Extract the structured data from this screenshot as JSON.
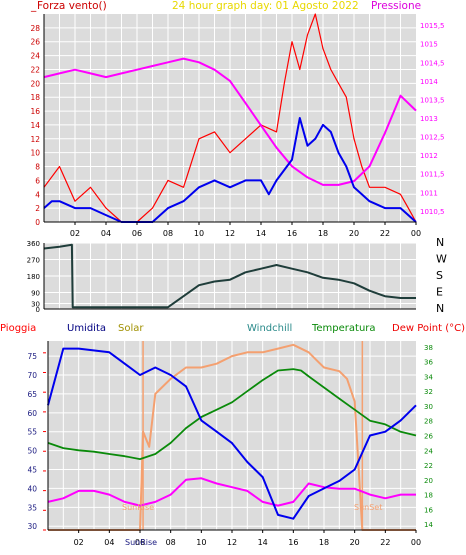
{
  "panel_wind": {
    "title": "24 hour graph day:  01 Agosto 2022",
    "left_label": "Forza vento()",
    "left_label_prefix": "_",
    "right_label": "Pressione"
  },
  "panel_direction": {
    "compass": [
      "N",
      "W",
      "S",
      "E",
      "N"
    ]
  },
  "panel_weather": {
    "legend": [
      "Pioggia",
      "Umidita",
      "Solar",
      "Windchill",
      "Temperatura",
      "Dew Point (°C)"
    ],
    "sunrise_label": "SunRise",
    "sunset_label": "SunSet"
  },
  "colors": {
    "frame": "#dcdcdc",
    "grid": "#ffffff",
    "wind_gust": "#ff0000",
    "wind_avg": "#0000ee",
    "pressure": "#ff00ff",
    "direction": "#1f3d3a",
    "humidity": "#0000ee",
    "solar": "#f4a070",
    "temperature": "#0a8a0a",
    "dewpoint": "#ff00ff",
    "rain": "#ff0000",
    "pressure_axis": "#ff00ff",
    "temp_axis": "#0a8a0a"
  },
  "chart_data": [
    {
      "type": "line",
      "title": "24 hour graph day:  01 Agosto 2022",
      "x_ticks": [
        "02",
        "04",
        "06",
        "08",
        "10",
        "12",
        "14",
        "16",
        "18",
        "20",
        "22",
        "00"
      ],
      "y_left": {
        "label": "Forza vento()",
        "ticks": [
          "0",
          "2",
          "4",
          "6",
          "8",
          "10",
          "12",
          "14",
          "16",
          "18",
          "20",
          "22",
          "24",
          "26",
          "28"
        ],
        "range": [
          0,
          30
        ]
      },
      "y_right": {
        "label": "Pressione",
        "ticks": [
          "1010,5",
          "1011",
          "1011,5",
          "1012",
          "1012,5",
          "1013",
          "1013,5",
          "1014",
          "1014,5",
          "1015",
          "1015,5"
        ],
        "range": [
          1010.2,
          1015.8
        ]
      },
      "series": [
        {
          "name": "gust",
          "x": [
            0.0,
            1.0,
            2.0,
            3.0,
            4.0,
            5.0,
            6.0,
            7.0,
            8.0,
            9.0,
            10.0,
            11.0,
            12.0,
            13.0,
            14.0,
            15.0,
            15.5,
            16.0,
            16.5,
            17.0,
            17.5,
            18.0,
            18.5,
            19.0,
            19.5,
            20.0,
            20.5,
            21.0,
            22.0,
            23.0,
            23.5,
            24.0
          ],
          "y": [
            5,
            8,
            3,
            5,
            2,
            0,
            0,
            2,
            6,
            5,
            12,
            13,
            10,
            12,
            14,
            13,
            20,
            26,
            22,
            27,
            30,
            25,
            22,
            20,
            18,
            12,
            8,
            5,
            5,
            4,
            2,
            0
          ]
        },
        {
          "name": "average",
          "x": [
            0.0,
            0.5,
            1.0,
            2.0,
            3.0,
            4.0,
            5.0,
            6.0,
            7.0,
            8.0,
            9.0,
            10.0,
            11.0,
            12.0,
            13.0,
            14.0,
            14.5,
            15.0,
            16.0,
            16.5,
            17.0,
            17.5,
            18.0,
            18.5,
            19.0,
            19.5,
            20.0,
            20.5,
            21.0,
            22.0,
            23.0,
            24.0
          ],
          "y": [
            2,
            3,
            3,
            2,
            2,
            1,
            0,
            0,
            0,
            2,
            3,
            5,
            6,
            5,
            6,
            6,
            4,
            6,
            9,
            15,
            11,
            12,
            14,
            13,
            10,
            8,
            5,
            4,
            3,
            2,
            2,
            0
          ]
        },
        {
          "name": "Pressione",
          "x": [
            0.0,
            1.0,
            2.0,
            3.0,
            4.0,
            5.0,
            6.0,
            7.0,
            8.0,
            9.0,
            10.0,
            11.0,
            12.0,
            13.0,
            14.0,
            15.0,
            16.0,
            17.0,
            18.0,
            19.0,
            20.0,
            21.0,
            22.0,
            23.0,
            24.0
          ],
          "y": [
            1014.1,
            1014.2,
            1014.3,
            1014.2,
            1014.1,
            1014.2,
            1014.3,
            1014.4,
            1014.5,
            1014.6,
            1014.5,
            1014.3,
            1014.0,
            1013.4,
            1012.8,
            1012.2,
            1011.7,
            1011.4,
            1011.2,
            1011.2,
            1011.3,
            1011.7,
            1012.6,
            1013.6,
            1013.2
          ]
        }
      ]
    },
    {
      "type": "line",
      "y_ticks": [
        "0",
        "30",
        "90",
        "180",
        "270",
        "360"
      ],
      "y_range": [
        0,
        360
      ],
      "series": [
        {
          "name": "wind direction",
          "x": [
            0.0,
            1.0,
            1.8,
            1.85,
            4.0,
            6.0,
            8.0,
            9.0,
            10.0,
            11.0,
            12.0,
            13.0,
            14.0,
            15.0,
            16.0,
            17.0,
            18.0,
            19.0,
            20.0,
            21.0,
            22.0,
            23.0,
            24.0
          ],
          "y": [
            330,
            340,
            350,
            10,
            10,
            10,
            10,
            70,
            130,
            150,
            160,
            200,
            220,
            240,
            220,
            200,
            170,
            160,
            140,
            100,
            70,
            60,
            60
          ]
        }
      ]
    },
    {
      "type": "line",
      "legend": [
        "Pioggia",
        "Umidita",
        "Solar",
        "Windchill",
        "Temperatura",
        "Dew Point (°C)"
      ],
      "y_left": {
        "label": "Umidita",
        "ticks": [
          "30",
          "35",
          "40",
          "45",
          "50",
          "55",
          "60",
          "65",
          "70",
          "75"
        ],
        "range": [
          29,
          79
        ]
      },
      "y_right": {
        "label": "Temperatura",
        "ticks": [
          "14",
          "16",
          "18",
          "20",
          "22",
          "24",
          "26",
          "28",
          "30",
          "32",
          "34",
          "36",
          "38"
        ],
        "range": [
          13.2,
          38.8
        ]
      },
      "x_ticks": [
        "02",
        "04",
        "06",
        "08",
        "10",
        "12",
        "14",
        "16",
        "18",
        "20",
        "22",
        "00"
      ],
      "annotations": [
        {
          "text": "SunRise",
          "x": 6.2
        },
        {
          "text": "SunSet",
          "x": 20.5
        }
      ],
      "series": [
        {
          "name": "Umidita",
          "x": [
            0.0,
            1.0,
            2.0,
            4.0,
            5.0,
            6.0,
            7.0,
            8.0,
            9.0,
            10.0,
            11.0,
            12.0,
            13.0,
            14.0,
            15.0,
            16.0,
            16.5,
            17.0,
            18.0,
            19.0,
            20.0,
            21.0,
            22.0,
            23.0,
            24.0
          ],
          "y": [
            62,
            77,
            77,
            76,
            73,
            70,
            72,
            70,
            67,
            58,
            55,
            52,
            47,
            43,
            33,
            32,
            35,
            38,
            40,
            42,
            45,
            54,
            55,
            58,
            62
          ]
        },
        {
          "name": "Solar",
          "x": [
            0.0,
            4.0,
            6.0,
            6.2,
            6.6,
            7.0,
            8.0,
            9.0,
            10.0,
            11.0,
            12.0,
            13.0,
            14.0,
            15.0,
            16.0,
            17.0,
            17.5,
            18.0,
            19.0,
            19.5,
            20.0,
            20.5,
            21.0,
            22.0,
            24.0
          ],
          "y": [
            29,
            29,
            29,
            55,
            51,
            65,
            69,
            72,
            72,
            73,
            75,
            76,
            76,
            77,
            78,
            76,
            74,
            72,
            71,
            69,
            63,
            29,
            29,
            29,
            29
          ]
        },
        {
          "name": "Temperatura",
          "x": [
            0.0,
            1.0,
            2.0,
            3.0,
            4.0,
            5.0,
            6.0,
            7.0,
            8.0,
            9.0,
            10.0,
            11.0,
            12.0,
            13.0,
            14.0,
            15.0,
            16.0,
            16.5,
            17.0,
            18.0,
            19.0,
            20.0,
            21.0,
            22.0,
            23.0,
            24.0
          ],
          "y": [
            25.0,
            24.3,
            24.0,
            23.8,
            23.5,
            23.2,
            22.8,
            23.5,
            25.0,
            27.0,
            28.5,
            29.5,
            30.5,
            32.0,
            33.5,
            34.8,
            35.0,
            34.8,
            34.0,
            32.5,
            31.0,
            29.5,
            28.0,
            27.5,
            26.5,
            26.0
          ]
        },
        {
          "name": "Dew Point",
          "x": [
            0.0,
            1.0,
            2.0,
            3.0,
            4.0,
            5.0,
            6.0,
            7.0,
            8.0,
            9.0,
            10.0,
            11.0,
            12.0,
            13.0,
            14.0,
            15.0,
            16.0,
            17.0,
            18.0,
            19.0,
            20.0,
            21.0,
            22.0,
            23.0,
            24.0
          ],
          "y": [
            17.0,
            17.5,
            18.5,
            18.5,
            18.0,
            17.0,
            16.5,
            17.0,
            18.0,
            20.0,
            20.2,
            19.5,
            19.0,
            18.5,
            17.0,
            16.5,
            17.0,
            19.5,
            19.0,
            18.8,
            18.8,
            18.0,
            17.5,
            18.0,
            18.0
          ]
        }
      ]
    }
  ]
}
